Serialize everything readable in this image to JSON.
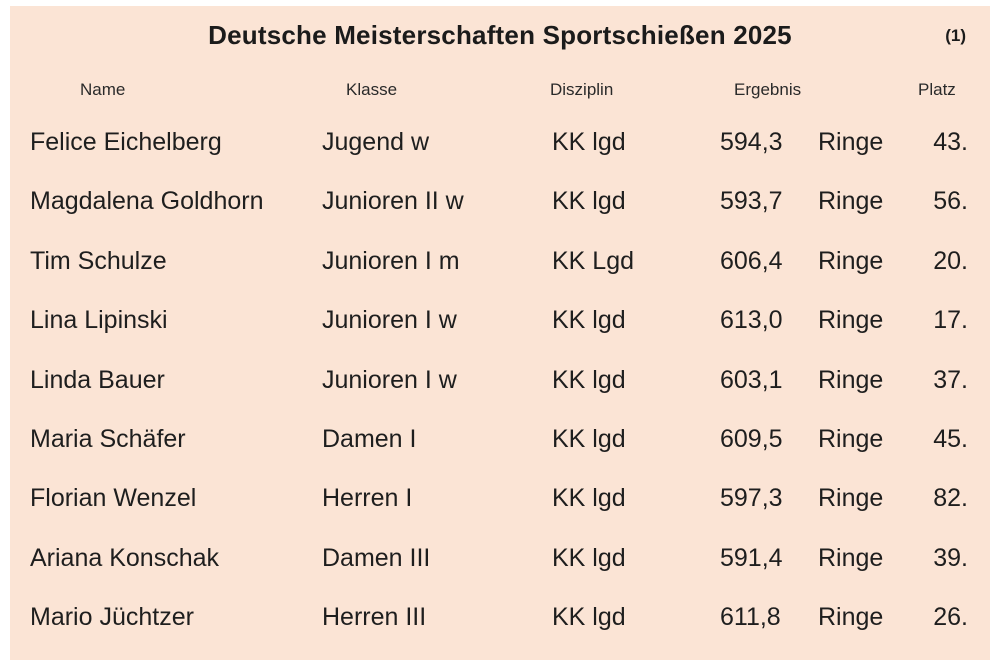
{
  "title": "Deutsche Meisterschaften Sportschießen 2025",
  "page_number": "(1)",
  "headers": {
    "name": "Name",
    "klasse": "Klasse",
    "disziplin": "Disziplin",
    "ergebnis": "Ergebnis",
    "platz": "Platz"
  },
  "rows": [
    {
      "name": "Felice Eichelberg",
      "klasse": "Jugend w",
      "disziplin": "KK lgd",
      "ergebnis": "594,3",
      "einheit": "Ringe",
      "platz": "43."
    },
    {
      "name": "Magdalena Goldhorn",
      "klasse": "Junioren II w",
      "disziplin": "KK lgd",
      "ergebnis": "593,7",
      "einheit": "Ringe",
      "platz": "56."
    },
    {
      "name": "Tim Schulze",
      "klasse": "Junioren I m",
      "disziplin": "KK Lgd",
      "ergebnis": "606,4",
      "einheit": "Ringe",
      "platz": "20."
    },
    {
      "name": "Lina Lipinski",
      "klasse": "Junioren I w",
      "disziplin": "KK lgd",
      "ergebnis": "613,0",
      "einheit": "Ringe",
      "platz": "17."
    },
    {
      "name": "Linda Bauer",
      "klasse": "Junioren I w",
      "disziplin": "KK lgd",
      "ergebnis": "603,1",
      "einheit": "Ringe",
      "platz": "37."
    },
    {
      "name": "Maria Schäfer",
      "klasse": "Damen I",
      "disziplin": "KK lgd",
      "ergebnis": "609,5",
      "einheit": "Ringe",
      "platz": "45."
    },
    {
      "name": "Florian Wenzel",
      "klasse": "Herren I",
      "disziplin": "KK lgd",
      "ergebnis": "597,3",
      "einheit": "Ringe",
      "platz": "82."
    },
    {
      "name": "Ariana Konschak",
      "klasse": "Damen III",
      "disziplin": "KK lgd",
      "ergebnis": "591,4",
      "einheit": "Ringe",
      "platz": "39."
    },
    {
      "name": "Mario Jüchtzer",
      "klasse": "Herren III",
      "disziplin": "KK lgd",
      "ergebnis": "611,8",
      "einheit": "Ringe",
      "platz": "26."
    }
  ],
  "colors": {
    "background": "#fbe4d5",
    "text": "#1e1e1e"
  }
}
